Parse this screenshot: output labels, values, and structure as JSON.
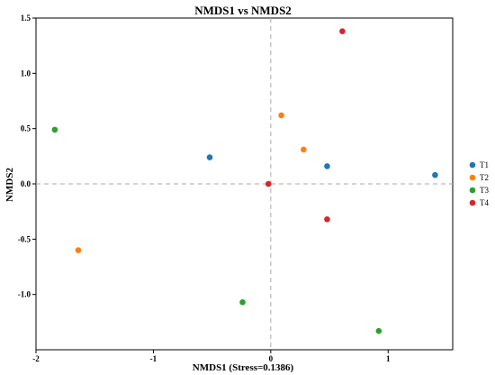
{
  "chart_data": {
    "type": "scatter",
    "title": "NMDS1 vs NMDS2",
    "xlabel": "NMDS1 (Stress=0.1386)",
    "ylabel": "NMDS2",
    "xlim": [
      -2.0,
      1.55
    ],
    "ylim": [
      -1.5,
      1.5
    ],
    "xticks": [
      -2,
      -1,
      0,
      1
    ],
    "yticks": [
      1.5,
      1.0,
      0.5,
      0.0,
      -0.5,
      -1.0
    ],
    "xtick_labels": [
      "-2",
      "-1",
      "0",
      "1"
    ],
    "ytick_labels": [
      "1.5",
      "1.0",
      "0.5",
      "0.0",
      "-0.5",
      "-1.0"
    ],
    "reference_lines": {
      "x": 0,
      "y": 0
    },
    "grid": false,
    "legend_position": "right",
    "series": [
      {
        "name": "T1",
        "color": "#1f77b4",
        "points": [
          [
            -0.52,
            0.24
          ],
          [
            0.48,
            0.16
          ],
          [
            1.4,
            0.08
          ]
        ]
      },
      {
        "name": "T2",
        "color": "#ff7f0e",
        "points": [
          [
            -1.64,
            -0.6
          ],
          [
            0.09,
            0.62
          ],
          [
            0.28,
            0.31
          ]
        ]
      },
      {
        "name": "T3",
        "color": "#2ca02c",
        "points": [
          [
            -1.84,
            0.49
          ],
          [
            -0.24,
            -1.07
          ],
          [
            0.92,
            -1.33
          ]
        ]
      },
      {
        "name": "T4",
        "color": "#d62728",
        "points": [
          [
            -0.02,
            0.0
          ],
          [
            0.61,
            1.38
          ],
          [
            0.48,
            -0.32
          ]
        ]
      }
    ]
  }
}
